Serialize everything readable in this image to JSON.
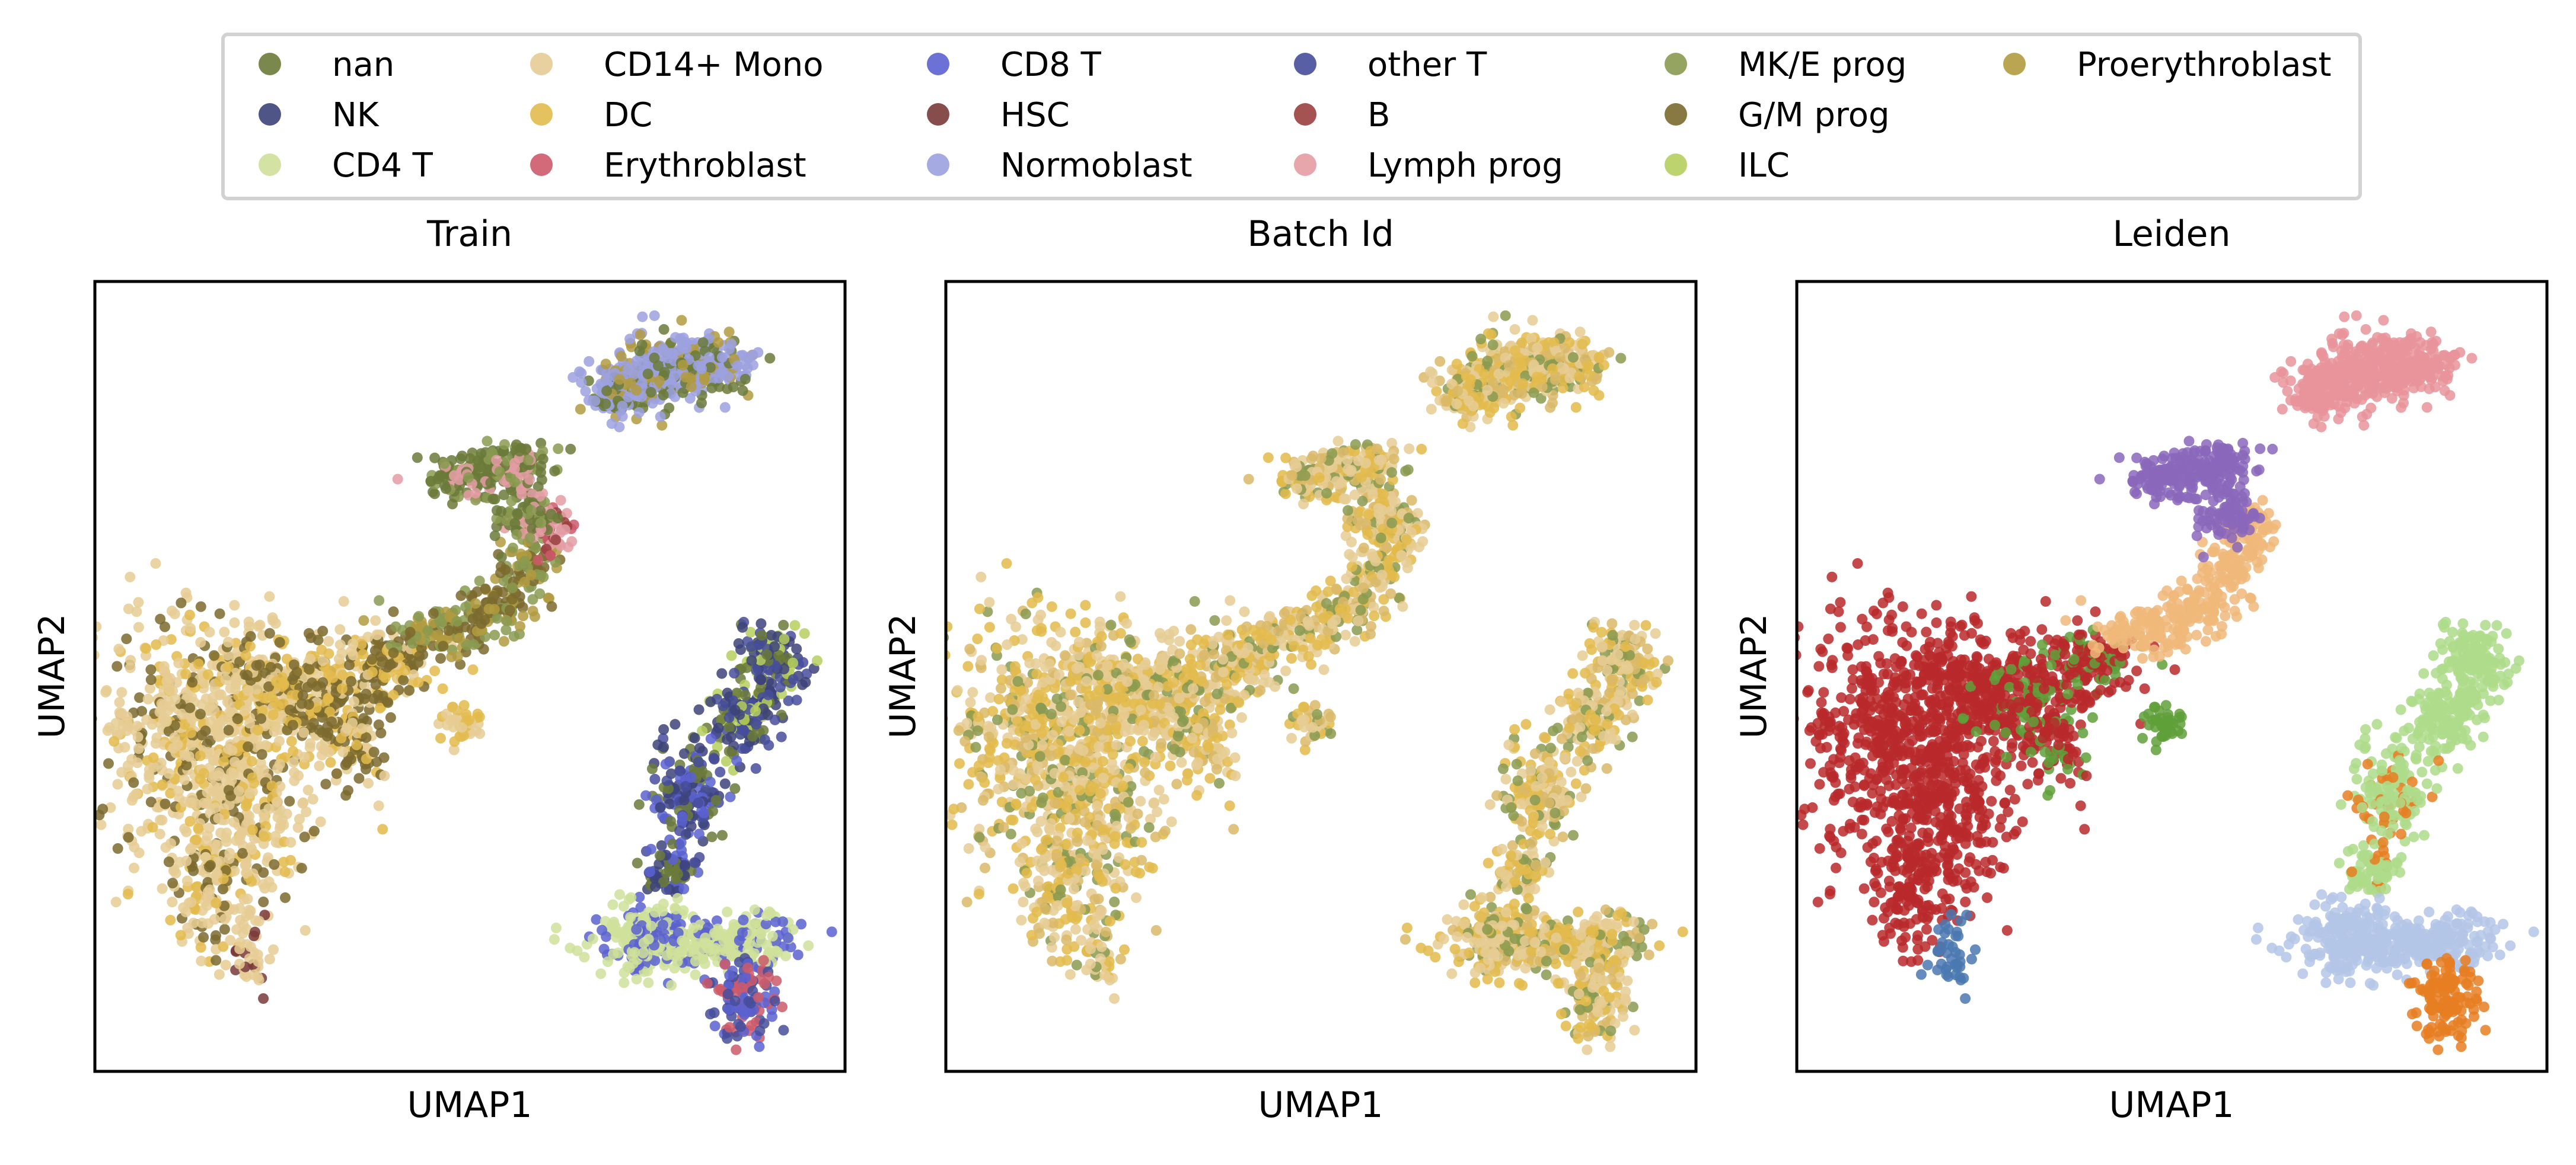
{
  "legend": {
    "entries": [
      {
        "label": "nan",
        "color": "#6b7a3a"
      },
      {
        "label": "NK",
        "color": "#3d437a"
      },
      {
        "label": "CD4 T",
        "color": "#cfe09a"
      },
      {
        "label": "CD14+ Mono",
        "color": "#e6cc94"
      },
      {
        "label": "DC",
        "color": "#e3bb4c"
      },
      {
        "label": "Erythroblast",
        "color": "#cd5a6a"
      },
      {
        "label": "CD8 T",
        "color": "#5b62d0"
      },
      {
        "label": "HSC",
        "color": "#7a3a3a"
      },
      {
        "label": "Normoblast",
        "color": "#9ca1df"
      },
      {
        "label": "other T",
        "color": "#474e9b"
      },
      {
        "label": "B",
        "color": "#9a3f3f"
      },
      {
        "label": "Lymph prog",
        "color": "#e39ca3"
      },
      {
        "label": "MK/E prog",
        "color": "#8a9a50"
      },
      {
        "label": "G/M prog",
        "color": "#7b6a2e"
      },
      {
        "label": "ILC",
        "color": "#b6cf5e"
      },
      {
        "label": "Proerythroblast",
        "color": "#b29b3f"
      }
    ]
  },
  "chart_data": [
    {
      "type": "scatter",
      "title": "Train",
      "xlabel": "UMAP1",
      "ylabel": "UMAP2",
      "grid": false,
      "legend_placement": "top-center",
      "color_by": "cell type",
      "series_names": [
        "nan",
        "NK",
        "CD4 T",
        "CD14+ Mono",
        "DC",
        "Erythroblast",
        "CD8 T",
        "HSC",
        "Normoblast",
        "other T",
        "B",
        "Lymph prog",
        "MK/E prog",
        "G/M prog",
        "ILC",
        "Proerythroblast"
      ]
    },
    {
      "type": "scatter",
      "title": "Batch Id",
      "xlabel": "UMAP1",
      "ylabel": "UMAP2",
      "grid": false,
      "color_by": "batch"
    },
    {
      "type": "scatter",
      "title": "Leiden",
      "xlabel": "UMAP1",
      "ylabel": "UMAP2",
      "grid": false,
      "color_by": "leiden cluster",
      "cluster_colors": [
        "#b8292b",
        "#e8949a",
        "#8a67bb",
        "#f0b87a",
        "#5fa03a",
        "#aedc8a",
        "#b4c6e7",
        "#e67e22",
        "#4a78b0"
      ]
    }
  ]
}
